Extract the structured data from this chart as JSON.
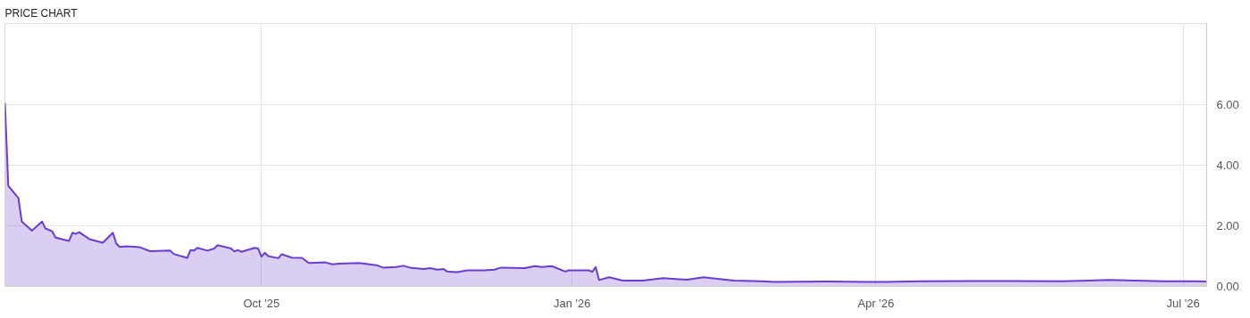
{
  "chart_data": {
    "type": "area",
    "title": "PRICE CHART",
    "x": [
      "2025-07-17",
      "2025-07-18",
      "2025-07-21",
      "2025-07-22",
      "2025-07-25",
      "2025-07-28",
      "2025-07-29",
      "2025-07-31",
      "2025-08-01",
      "2025-08-05",
      "2025-08-06",
      "2025-08-07",
      "2025-08-08",
      "2025-08-11",
      "2025-08-15",
      "2025-08-18",
      "2025-08-19",
      "2025-08-20",
      "2025-08-22",
      "2025-08-26",
      "2025-08-29",
      "2025-09-04",
      "2025-09-05",
      "2025-09-09",
      "2025-09-10",
      "2025-09-11",
      "2025-09-12",
      "2025-09-15",
      "2025-09-17",
      "2025-09-18",
      "2025-09-22",
      "2025-09-23",
      "2025-09-24",
      "2025-09-25",
      "2025-09-29",
      "2025-09-30",
      "2025-10-01",
      "2025-10-02",
      "2025-10-03",
      "2025-10-06",
      "2025-10-07",
      "2025-10-08",
      "2025-10-10",
      "2025-10-13",
      "2025-10-15",
      "2025-10-20",
      "2025-10-22",
      "2025-10-24",
      "2025-10-30",
      "2025-11-04",
      "2025-11-06",
      "2025-11-10",
      "2025-11-12",
      "2025-11-14",
      "2025-11-18",
      "2025-11-20",
      "2025-11-22",
      "2025-11-24",
      "2025-11-25",
      "2025-11-28",
      "2025-12-01",
      "2025-12-06",
      "2025-12-09",
      "2025-12-11",
      "2025-12-18",
      "2025-12-21",
      "2025-12-23",
      "2025-12-26",
      "2025-12-30",
      "2025-12-31",
      "2026-01-06",
      "2026-01-07",
      "2026-01-08",
      "2026-01-09",
      "2026-01-12",
      "2026-01-16",
      "2026-01-22",
      "2026-01-28",
      "2026-02-04",
      "2026-02-09",
      "2026-02-13",
      "2026-02-18",
      "2026-02-26",
      "2026-03-02",
      "2026-03-18",
      "2026-03-29",
      "2026-04-04",
      "2026-04-15",
      "2026-04-29",
      "2026-05-12",
      "2026-05-26",
      "2026-06-03",
      "2026-06-09",
      "2026-06-17",
      "2026-06-25",
      "2026-07-04",
      "2026-07-08"
    ],
    "series": [
      {
        "color": "#6a3dd0",
        "values": [
          6.05,
          3.32,
          2.91,
          2.14,
          1.84,
          2.14,
          1.91,
          1.82,
          1.61,
          1.5,
          1.77,
          1.73,
          1.79,
          1.56,
          1.44,
          1.77,
          1.41,
          1.3,
          1.32,
          1.29,
          1.16,
          1.18,
          1.07,
          0.94,
          1.2,
          1.18,
          1.27,
          1.18,
          1.25,
          1.36,
          1.25,
          1.15,
          1.2,
          1.14,
          1.27,
          1.25,
          0.98,
          1.11,
          1.0,
          0.93,
          1.06,
          1.02,
          0.95,
          0.94,
          0.77,
          0.79,
          0.73,
          0.75,
          0.77,
          0.7,
          0.62,
          0.64,
          0.68,
          0.62,
          0.57,
          0.6,
          0.55,
          0.57,
          0.49,
          0.47,
          0.53,
          0.53,
          0.55,
          0.62,
          0.6,
          0.67,
          0.64,
          0.67,
          0.49,
          0.53,
          0.53,
          0.48,
          0.64,
          0.21,
          0.3,
          0.19,
          0.19,
          0.27,
          0.22,
          0.3,
          0.25,
          0.19,
          0.17,
          0.15,
          0.16,
          0.15,
          0.15,
          0.17,
          0.18,
          0.18,
          0.17,
          0.19,
          0.21,
          0.19,
          0.17,
          0.17,
          0.16
        ]
      }
    ],
    "xlim": [
      "2025-07-17",
      "2026-07-08"
    ],
    "xticks": [
      {
        "value": "2025-10-01",
        "label": "Oct '25"
      },
      {
        "value": "2026-01-01",
        "label": "Jan '26"
      },
      {
        "value": "2026-04-01",
        "label": "Apr '26"
      },
      {
        "value": "2026-07-01",
        "label": "Jul '26"
      }
    ],
    "ylim": [
      0,
      8.67
    ],
    "yticks": [
      {
        "value": 0,
        "label": "0.00"
      },
      {
        "value": 2,
        "label": "2.00"
      },
      {
        "value": 4,
        "label": "4.00"
      },
      {
        "value": 6,
        "label": "6.00"
      }
    ],
    "grid": true
  }
}
